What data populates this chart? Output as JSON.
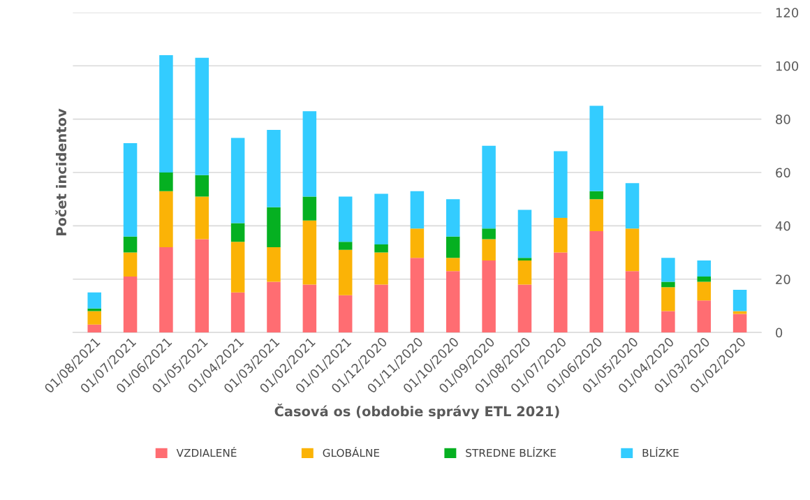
{
  "chart_data": {
    "type": "bar",
    "stacked": true,
    "xlabel": "Časová os (obdobie správy ETL 2021)",
    "ylabel": "Počet incidentov",
    "categories": [
      "01/08/2021",
      "01/07/2021",
      "01/06/2021",
      "01/05/2021",
      "01/04/2021",
      "01/03/2021",
      "01/02/2021",
      "01/01/2021",
      "01/12/2020",
      "01/11/2020",
      "01/10/2020",
      "01/09/2020",
      "01/08/2020",
      "01/07/2020",
      "01/06/2020",
      "01/05/2020",
      "01/04/2020",
      "01/03/2020",
      "01/02/2020"
    ],
    "series": [
      {
        "name": "VZDIALENÉ",
        "color": "#ff6d72",
        "values": [
          3,
          21,
          32,
          35,
          15,
          19,
          18,
          14,
          18,
          28,
          23,
          27,
          18,
          30,
          38,
          23,
          8,
          12,
          7
        ]
      },
      {
        "name": "GLOBÁLNE",
        "color": "#fbb306",
        "values": [
          5,
          9,
          21,
          16,
          19,
          13,
          24,
          17,
          12,
          11,
          5,
          8,
          9,
          13,
          12,
          16,
          9,
          7,
          1
        ]
      },
      {
        "name": "STREDNE BLÍZKE",
        "color": "#05b021",
        "values": [
          1,
          6,
          7,
          8,
          7,
          15,
          9,
          3,
          3,
          0,
          8,
          4,
          1,
          0,
          3,
          0,
          2,
          2,
          0
        ]
      },
      {
        "name": "BLÍZKE",
        "color": "#33ccff",
        "values": [
          6,
          35,
          44,
          44,
          32,
          29,
          32,
          17,
          19,
          14,
          14,
          31,
          18,
          25,
          32,
          17,
          9,
          6,
          8
        ]
      }
    ],
    "ylim": [
      0,
      120
    ],
    "yticks": [
      0,
      20,
      40,
      60,
      80,
      100,
      120
    ],
    "grid": "y",
    "legend": "bottom"
  }
}
